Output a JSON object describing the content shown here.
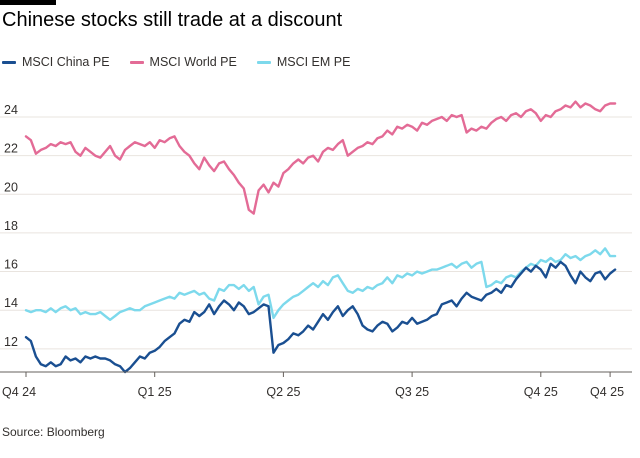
{
  "chart_data": {
    "type": "line",
    "title": "Chinese stocks still trade at a discount",
    "source": "Source: Bloomberg",
    "xlabel": "",
    "ylabel": "",
    "x_ticks": [
      {
        "label": "Q4 24",
        "t": 0
      },
      {
        "label": "Q1 25",
        "t": 13
      },
      {
        "label": "Q2 25",
        "t": 26
      },
      {
        "label": "Q3 25",
        "t": 39
      },
      {
        "label": "Q4 25",
        "t": 52
      },
      {
        "label": "Q4 25",
        "t": 59
      }
    ],
    "x_range": [
      0,
      60
    ],
    "y_ticks": [
      12,
      14,
      16,
      18,
      20,
      22,
      24
    ],
    "ylim": [
      10.8,
      25.4
    ],
    "grid": true,
    "legend_position": "top-left",
    "series": [
      {
        "name": "MSCI China PE",
        "color": "#1a4f91",
        "x": [
          0,
          0.5,
          1,
          1.5,
          2,
          2.5,
          3,
          3.5,
          4,
          4.5,
          5,
          5.5,
          6,
          6.5,
          7,
          7.5,
          8,
          8.5,
          9,
          9.5,
          10,
          10.5,
          11,
          11.5,
          12,
          12.5,
          13,
          13.5,
          14,
          14.5,
          15,
          15.5,
          16,
          16.5,
          17,
          17.5,
          18,
          18.5,
          19,
          19.5,
          20,
          20.5,
          21,
          21.5,
          22,
          22.5,
          23,
          23.5,
          24,
          24.5,
          25,
          25.5,
          26,
          26.5,
          27,
          27.5,
          28,
          28.5,
          29,
          29.5,
          30,
          30.5,
          31,
          31.5,
          32,
          32.5,
          33,
          33.5,
          34,
          34.5,
          35,
          35.5,
          36,
          36.5,
          37,
          37.5,
          38,
          38.5,
          39,
          39.5,
          40,
          40.5,
          41,
          41.5,
          42,
          42.5,
          43,
          43.5,
          44,
          44.5,
          45,
          45.5,
          46,
          46.5,
          47,
          47.5,
          48,
          48.5,
          49,
          49.5,
          50,
          50.5,
          51,
          51.5,
          52,
          52.5,
          53,
          53.5,
          54,
          54.5,
          55,
          55.5,
          56,
          56.5,
          57,
          57.5,
          58,
          58.5,
          59,
          59.5
        ],
        "values": [
          12.6,
          12.4,
          11.6,
          11.2,
          11.1,
          11.3,
          11.1,
          11.2,
          11.6,
          11.4,
          11.5,
          11.3,
          11.6,
          11.5,
          11.6,
          11.5,
          11.5,
          11.4,
          11.2,
          11.1,
          10.8,
          11.0,
          11.3,
          11.6,
          11.5,
          11.8,
          11.9,
          12.1,
          12.4,
          12.6,
          12.8,
          13.3,
          13.5,
          13.4,
          13.9,
          13.7,
          13.9,
          14.3,
          13.8,
          14.2,
          14.5,
          14.3,
          14.0,
          14.4,
          14.2,
          13.8,
          13.9,
          14.1,
          14.3,
          14.2,
          11.8,
          12.2,
          12.3,
          12.5,
          12.8,
          12.7,
          12.9,
          13.2,
          13.0,
          13.4,
          13.8,
          13.5,
          13.9,
          14.2,
          13.7,
          14.0,
          14.2,
          13.8,
          13.2,
          13.0,
          12.9,
          13.2,
          13.4,
          13.3,
          12.9,
          13.1,
          13.4,
          13.3,
          13.6,
          13.3,
          13.4,
          13.5,
          13.7,
          13.8,
          14.3,
          14.4,
          14.5,
          14.2,
          14.6,
          14.9,
          14.7,
          14.6,
          14.5,
          14.8,
          14.9,
          15.1,
          14.9,
          15.3,
          15.2,
          15.6,
          15.9,
          16.2,
          16.0,
          16.3,
          16.1,
          15.7,
          16.4,
          16.2,
          16.5,
          16.3,
          15.8,
          15.4,
          16.0,
          15.7,
          15.5,
          15.9,
          16.0,
          15.6,
          15.9,
          16.1
        ]
      },
      {
        "name": "MSCI World PE",
        "color": "#e36b96",
        "x": [
          0,
          0.5,
          1,
          1.5,
          2,
          2.5,
          3,
          3.5,
          4,
          4.5,
          5,
          5.5,
          6,
          6.5,
          7,
          7.5,
          8,
          8.5,
          9,
          9.5,
          10,
          10.5,
          11,
          11.5,
          12,
          12.5,
          13,
          13.5,
          14,
          14.5,
          15,
          15.5,
          16,
          16.5,
          17,
          17.5,
          18,
          18.5,
          19,
          19.5,
          20,
          20.5,
          21,
          21.5,
          22,
          22.5,
          23,
          23.5,
          24,
          24.5,
          25,
          25.5,
          26,
          26.5,
          27,
          27.5,
          28,
          28.5,
          29,
          29.5,
          30,
          30.5,
          31,
          31.5,
          32,
          32.5,
          33,
          33.5,
          34,
          34.5,
          35,
          35.5,
          36,
          36.5,
          37,
          37.5,
          38,
          38.5,
          39,
          39.5,
          40,
          40.5,
          41,
          41.5,
          42,
          42.5,
          43,
          43.5,
          44,
          44.5,
          45,
          45.5,
          46,
          46.5,
          47,
          47.5,
          48,
          48.5,
          49,
          49.5,
          50,
          50.5,
          51,
          51.5,
          52,
          52.5,
          53,
          53.5,
          54,
          54.5,
          55,
          55.5,
          56,
          56.5,
          57,
          57.5,
          58,
          58.5,
          59,
          59.5
        ],
        "values": [
          23.0,
          22.8,
          22.1,
          22.3,
          22.4,
          22.6,
          22.5,
          22.7,
          22.6,
          22.7,
          22.2,
          22.0,
          22.4,
          22.2,
          22.0,
          21.9,
          22.2,
          22.5,
          22.0,
          21.8,
          22.3,
          22.5,
          22.7,
          22.6,
          22.5,
          22.7,
          22.4,
          22.8,
          22.7,
          22.9,
          23.0,
          22.5,
          22.2,
          22.0,
          21.6,
          21.3,
          21.9,
          21.5,
          21.2,
          21.6,
          21.7,
          21.3,
          21.0,
          20.6,
          20.3,
          19.2,
          19.0,
          20.2,
          20.5,
          20.1,
          20.6,
          20.4,
          21.1,
          21.3,
          21.6,
          21.8,
          21.6,
          21.9,
          22.0,
          21.7,
          22.2,
          22.4,
          22.3,
          22.6,
          22.8,
          22.0,
          22.2,
          22.4,
          22.5,
          22.7,
          22.6,
          22.9,
          23.0,
          23.3,
          23.1,
          23.5,
          23.4,
          23.6,
          23.5,
          23.3,
          23.7,
          23.6,
          23.8,
          23.9,
          24.0,
          23.8,
          24.1,
          24.0,
          24.1,
          23.2,
          23.4,
          23.3,
          23.5,
          23.4,
          23.7,
          23.9,
          24.0,
          23.8,
          24.1,
          24.2,
          24.0,
          24.3,
          24.4,
          24.2,
          23.8,
          24.1,
          24.0,
          24.3,
          24.4,
          24.6,
          24.5,
          24.8,
          24.5,
          24.7,
          24.6,
          24.4,
          24.3,
          24.6,
          24.7,
          24.7
        ]
      },
      {
        "name": "MSCI EM PE",
        "color": "#7dd9ec",
        "x": [
          0,
          0.5,
          1,
          1.5,
          2,
          2.5,
          3,
          3.5,
          4,
          4.5,
          5,
          5.5,
          6,
          6.5,
          7,
          7.5,
          8,
          8.5,
          9,
          9.5,
          10,
          10.5,
          11,
          11.5,
          12,
          12.5,
          13,
          13.5,
          14,
          14.5,
          15,
          15.5,
          16,
          16.5,
          17,
          17.5,
          18,
          18.5,
          19,
          19.5,
          20,
          20.5,
          21,
          21.5,
          22,
          22.5,
          23,
          23.5,
          24,
          24.5,
          25,
          25.5,
          26,
          26.5,
          27,
          27.5,
          28,
          28.5,
          29,
          29.5,
          30,
          30.5,
          31,
          31.5,
          32,
          32.5,
          33,
          33.5,
          34,
          34.5,
          35,
          35.5,
          36,
          36.5,
          37,
          37.5,
          38,
          38.5,
          39,
          39.5,
          40,
          40.5,
          41,
          41.5,
          42,
          42.5,
          43,
          43.5,
          44,
          44.5,
          45,
          45.5,
          46,
          46.5,
          47,
          47.5,
          48,
          48.5,
          49,
          49.5,
          50,
          50.5,
          51,
          51.5,
          52,
          52.5,
          53,
          53.5,
          54,
          54.5,
          55,
          55.5,
          56,
          56.5,
          57,
          57.5,
          58,
          58.5,
          59,
          59.5
        ],
        "values": [
          14.0,
          13.9,
          14.0,
          14.0,
          13.9,
          14.1,
          13.9,
          14.1,
          14.2,
          14.0,
          14.1,
          13.8,
          13.9,
          13.8,
          13.8,
          13.9,
          13.7,
          13.5,
          13.7,
          13.9,
          14.0,
          14.1,
          14.0,
          14.0,
          14.2,
          14.3,
          14.4,
          14.5,
          14.6,
          14.7,
          14.6,
          14.9,
          14.8,
          14.9,
          15.0,
          14.8,
          14.9,
          14.6,
          14.5,
          15.1,
          15.0,
          15.3,
          15.3,
          15.1,
          15.3,
          15.0,
          15.2,
          14.3,
          14.7,
          14.8,
          13.6,
          14.0,
          14.3,
          14.5,
          14.7,
          14.8,
          15.0,
          15.2,
          15.4,
          15.2,
          15.5,
          15.3,
          15.7,
          15.8,
          15.4,
          15.0,
          14.9,
          15.1,
          15.0,
          15.2,
          15.1,
          15.3,
          15.4,
          15.7,
          15.4,
          15.8,
          15.7,
          15.9,
          15.8,
          16.0,
          15.9,
          16.0,
          16.1,
          16.1,
          16.2,
          16.3,
          16.4,
          16.2,
          16.4,
          16.5,
          16.2,
          16.4,
          16.5,
          15.2,
          15.3,
          15.5,
          15.4,
          15.7,
          15.8,
          15.7,
          16.0,
          16.2,
          16.4,
          16.3,
          16.6,
          16.5,
          16.7,
          16.5,
          16.6,
          16.9,
          16.7,
          16.8,
          16.6,
          16.8,
          16.9,
          17.1,
          16.9,
          17.2,
          16.8,
          16.8
        ]
      }
    ]
  }
}
